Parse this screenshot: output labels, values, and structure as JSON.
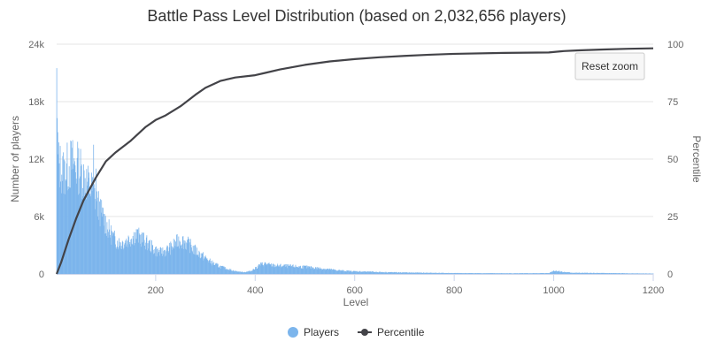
{
  "chart_data": {
    "type": "bar+line",
    "title": "Battle Pass Level Distribution (based on 2,032,656 players)",
    "xlabel": "Level",
    "ylabel_left": "Number of players",
    "ylabel_right": "Percentile",
    "xlim": [
      1,
      1200
    ],
    "ylim_left": [
      0,
      24000
    ],
    "ylim_right": [
      0,
      100
    ],
    "x_ticks": [
      "200",
      "400",
      "600",
      "800",
      "1000",
      "1200"
    ],
    "y_left_ticks": [
      "0",
      "6k",
      "12k",
      "18k",
      "24k"
    ],
    "y_right_ticks": [
      "0",
      "25",
      "50",
      "75",
      "100"
    ],
    "legend": {
      "placement": "bottom-center",
      "players_label": "Players",
      "percentile_label": "Percentile"
    },
    "colors": {
      "players": "#7cb5ec",
      "percentile": "#434348"
    },
    "players_profile": [
      [
        1,
        21500
      ],
      [
        2,
        15000
      ],
      [
        3,
        13000
      ],
      [
        5,
        11800
      ],
      [
        10,
        11300
      ],
      [
        15,
        10900
      ],
      [
        20,
        11200
      ],
      [
        25,
        11600
      ],
      [
        30,
        11900
      ],
      [
        35,
        11800
      ],
      [
        40,
        11500
      ],
      [
        45,
        11400
      ],
      [
        50,
        11000
      ],
      [
        55,
        10500
      ],
      [
        60,
        10000
      ],
      [
        65,
        9500
      ],
      [
        70,
        9200
      ],
      [
        75,
        8800
      ],
      [
        80,
        8000
      ],
      [
        85,
        7300
      ],
      [
        90,
        6600
      ],
      [
        95,
        6000
      ],
      [
        100,
        5400
      ],
      [
        105,
        4800
      ],
      [
        110,
        4300
      ],
      [
        115,
        3900
      ],
      [
        120,
        3600
      ],
      [
        125,
        3400
      ],
      [
        130,
        3300
      ],
      [
        140,
        3500
      ],
      [
        150,
        3900
      ],
      [
        160,
        4200
      ],
      [
        170,
        3900
      ],
      [
        180,
        3400
      ],
      [
        190,
        3000
      ],
      [
        200,
        2500
      ],
      [
        210,
        2300
      ],
      [
        220,
        2500
      ],
      [
        230,
        2800
      ],
      [
        240,
        3300
      ],
      [
        250,
        3700
      ],
      [
        260,
        3400
      ],
      [
        270,
        3000
      ],
      [
        280,
        2500
      ],
      [
        290,
        2100
      ],
      [
        300,
        1700
      ],
      [
        310,
        1300
      ],
      [
        320,
        1000
      ],
      [
        330,
        800
      ],
      [
        340,
        600
      ],
      [
        350,
        450
      ],
      [
        360,
        300
      ],
      [
        370,
        220
      ],
      [
        380,
        200
      ],
      [
        390,
        300
      ],
      [
        400,
        600
      ],
      [
        410,
        1000
      ],
      [
        420,
        1100
      ],
      [
        430,
        950
      ],
      [
        440,
        900
      ],
      [
        460,
        850
      ],
      [
        480,
        800
      ],
      [
        500,
        750
      ],
      [
        520,
        650
      ],
      [
        540,
        550
      ],
      [
        560,
        420
      ],
      [
        580,
        330
      ],
      [
        600,
        280
      ],
      [
        620,
        250
      ],
      [
        650,
        200
      ],
      [
        700,
        150
      ],
      [
        750,
        120
      ],
      [
        800,
        90
      ],
      [
        850,
        80
      ],
      [
        900,
        70
      ],
      [
        950,
        70
      ],
      [
        990,
        90
      ],
      [
        1000,
        350
      ],
      [
        1010,
        300
      ],
      [
        1020,
        200
      ],
      [
        1040,
        120
      ],
      [
        1080,
        100
      ],
      [
        1120,
        80
      ],
      [
        1160,
        60
      ],
      [
        1200,
        40
      ]
    ],
    "players_spikes": [
      [
        1,
        21500
      ],
      [
        3,
        14800
      ],
      [
        75,
        13500
      ],
      [
        80,
        11000
      ],
      [
        90,
        6400
      ]
    ],
    "percentile": [
      [
        1,
        0
      ],
      [
        10,
        5
      ],
      [
        25,
        15
      ],
      [
        40,
        24
      ],
      [
        55,
        32
      ],
      [
        70,
        38
      ],
      [
        80,
        42
      ],
      [
        100,
        49
      ],
      [
        120,
        53
      ],
      [
        150,
        58
      ],
      [
        180,
        64
      ],
      [
        200,
        67
      ],
      [
        220,
        69
      ],
      [
        250,
        73
      ],
      [
        280,
        78
      ],
      [
        300,
        81
      ],
      [
        330,
        84
      ],
      [
        360,
        85.5
      ],
      [
        400,
        86.5
      ],
      [
        420,
        87.5
      ],
      [
        450,
        89
      ],
      [
        500,
        91
      ],
      [
        550,
        92.5
      ],
      [
        600,
        93.5
      ],
      [
        650,
        94.3
      ],
      [
        700,
        94.9
      ],
      [
        750,
        95.4
      ],
      [
        800,
        95.8
      ],
      [
        900,
        96.2
      ],
      [
        990,
        96.4
      ],
      [
        1020,
        97
      ],
      [
        1050,
        97.3
      ],
      [
        1100,
        97.7
      ],
      [
        1150,
        98
      ],
      [
        1200,
        98.2
      ]
    ]
  },
  "ui": {
    "reset_zoom_label": "Reset zoom"
  }
}
